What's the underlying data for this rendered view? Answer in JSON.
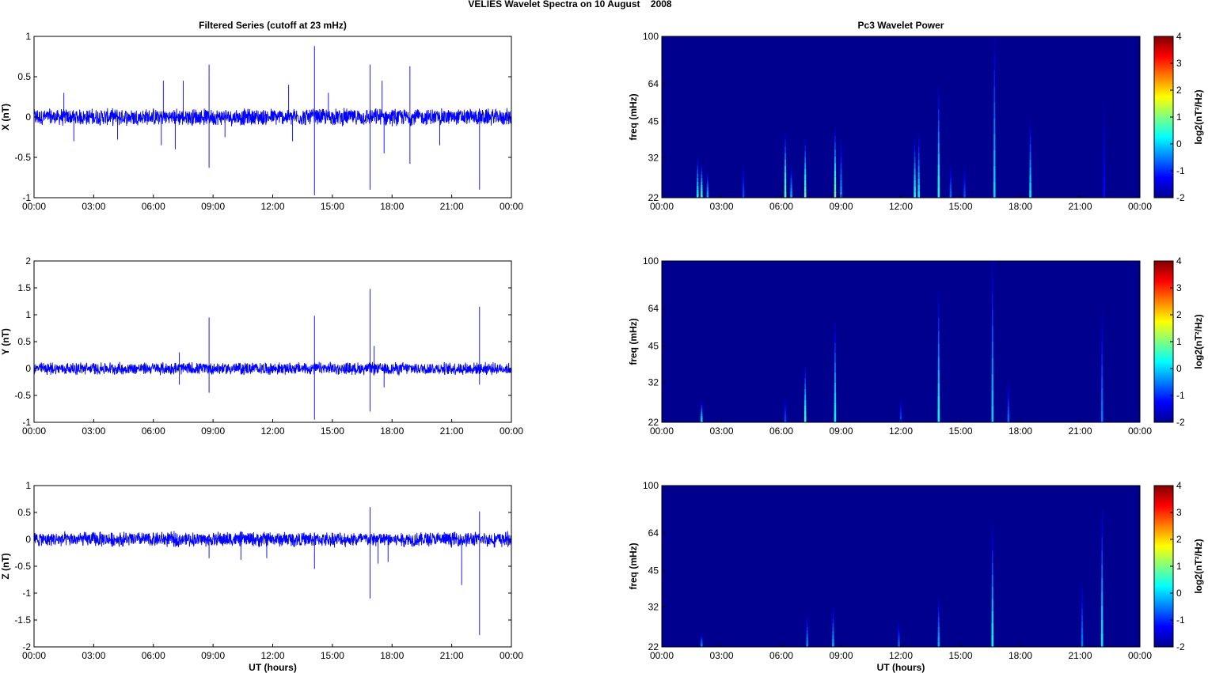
{
  "figure_title": "VELIES Wavelet Spectra on 10 August    2008",
  "colors": {
    "series_line": "#0000ff",
    "spectrogram_background": "#00008f",
    "axes": "#000000"
  },
  "chart_data": [
    {
      "type": "line",
      "title": "Filtered Series (cutoff at 23 mHz)",
      "xlabel": "",
      "ylabel": "X (nT)",
      "xticks": [
        "00:00",
        "03:00",
        "06:00",
        "09:00",
        "12:00",
        "15:00",
        "18:00",
        "21:00",
        "00:00"
      ],
      "xlim_hours": [
        0,
        24
      ],
      "ylim": [
        -1,
        1
      ],
      "yticks": [
        -1,
        -0.5,
        0,
        0.5,
        1
      ],
      "ytick_labels": [
        "-1",
        "-0.5",
        "0",
        "0.5",
        "1"
      ],
      "noise_amplitude": 0.09,
      "spikes": [
        {
          "t": 1.5,
          "v": 0.3
        },
        {
          "t": 2.0,
          "v": -0.3
        },
        {
          "t": 4.2,
          "v": -0.28
        },
        {
          "t": 6.5,
          "v": 0.45
        },
        {
          "t": 6.4,
          "v": -0.35
        },
        {
          "t": 7.1,
          "v": -0.4
        },
        {
          "t": 7.5,
          "v": 0.45
        },
        {
          "t": 8.8,
          "v": 0.65
        },
        {
          "t": 8.8,
          "v": -0.63
        },
        {
          "t": 9.6,
          "v": -0.25
        },
        {
          "t": 12.8,
          "v": 0.4
        },
        {
          "t": 13.0,
          "v": -0.3
        },
        {
          "t": 14.1,
          "v": 0.88
        },
        {
          "t": 14.1,
          "v": -0.97
        },
        {
          "t": 14.8,
          "v": 0.3
        },
        {
          "t": 16.9,
          "v": 0.65
        },
        {
          "t": 16.9,
          "v": -0.9
        },
        {
          "t": 17.5,
          "v": 0.45
        },
        {
          "t": 17.6,
          "v": -0.45
        },
        {
          "t": 18.9,
          "v": 0.63
        },
        {
          "t": 18.9,
          "v": -0.58
        },
        {
          "t": 20.4,
          "v": -0.35
        },
        {
          "t": 22.4,
          "v": -0.9
        }
      ]
    },
    {
      "type": "line",
      "title": "",
      "xlabel": "",
      "ylabel": "Y (nT)",
      "xticks": [
        "00:00",
        "03:00",
        "06:00",
        "09:00",
        "12:00",
        "15:00",
        "18:00",
        "21:00",
        "00:00"
      ],
      "xlim_hours": [
        0,
        24
      ],
      "ylim": [
        -1,
        2
      ],
      "yticks": [
        -1,
        -0.5,
        0,
        0.5,
        1,
        1.5,
        2
      ],
      "ytick_labels": [
        "-1",
        "-0.5",
        "0",
        "0.5",
        "1",
        "1.5",
        "2"
      ],
      "noise_amplitude": 0.1,
      "spikes": [
        {
          "t": 7.3,
          "v": 0.3
        },
        {
          "t": 7.3,
          "v": -0.3
        },
        {
          "t": 8.8,
          "v": 0.95
        },
        {
          "t": 8.8,
          "v": -0.45
        },
        {
          "t": 14.1,
          "v": 0.98
        },
        {
          "t": 14.1,
          "v": -0.95
        },
        {
          "t": 16.9,
          "v": 1.48
        },
        {
          "t": 16.9,
          "v": -0.8
        },
        {
          "t": 17.1,
          "v": 0.42
        },
        {
          "t": 17.6,
          "v": -0.35
        },
        {
          "t": 22.4,
          "v": 1.15
        },
        {
          "t": 22.4,
          "v": -0.3
        }
      ]
    },
    {
      "type": "line",
      "title": "",
      "xlabel": "UT (hours)",
      "ylabel": "Z (nT)",
      "xticks": [
        "00:00",
        "03:00",
        "06:00",
        "09:00",
        "12:00",
        "15:00",
        "18:00",
        "21:00",
        "00:00"
      ],
      "xlim_hours": [
        0,
        24
      ],
      "ylim": [
        -2,
        1
      ],
      "yticks": [
        -2,
        -1.5,
        -1,
        -0.5,
        0,
        0.5,
        1
      ],
      "ytick_labels": [
        "-2",
        "-1.5",
        "-1",
        "-0.5",
        "0",
        "0.5",
        "1"
      ],
      "noise_amplitude": 0.12,
      "spikes": [
        {
          "t": 8.8,
          "v": -0.35
        },
        {
          "t": 10.4,
          "v": -0.38
        },
        {
          "t": 11.7,
          "v": -0.35
        },
        {
          "t": 14.1,
          "v": -0.55
        },
        {
          "t": 16.9,
          "v": 0.6
        },
        {
          "t": 16.9,
          "v": -1.1
        },
        {
          "t": 17.3,
          "v": -0.45
        },
        {
          "t": 17.8,
          "v": -0.42
        },
        {
          "t": 21.5,
          "v": -0.85
        },
        {
          "t": 22.4,
          "v": 0.52
        },
        {
          "t": 22.4,
          "v": -1.78
        }
      ]
    },
    {
      "type": "heatmap",
      "title": "Pc3 Wavelet Power",
      "xlabel": "",
      "ylabel": "freq (mHz)",
      "xticks": [
        "00:00",
        "03:00",
        "06:00",
        "09:00",
        "12:00",
        "15:00",
        "18:00",
        "21:00",
        "00:00"
      ],
      "xlim_hours": [
        0,
        24
      ],
      "ylim_mhz": [
        22,
        100
      ],
      "yticks": [
        22,
        32,
        45,
        64,
        100
      ],
      "ytick_labels": [
        "22",
        "32",
        "45",
        "64",
        "100"
      ],
      "colorbar_label": "log2(nT²/Hz)",
      "colorbar_ticks": [
        -2,
        -1,
        0,
        1,
        2,
        3,
        4
      ],
      "colorbar_tick_labels": [
        "-2",
        "-1",
        "0",
        "1",
        "2",
        "3",
        "4"
      ],
      "clim": [
        -2,
        4
      ],
      "events": [
        {
          "t": 1.8,
          "fmax": 32,
          "level": 0.3
        },
        {
          "t": 2.0,
          "fmax": 30,
          "level": 0.6
        },
        {
          "t": 2.3,
          "fmax": 28,
          "level": -0.2
        },
        {
          "t": 4.1,
          "fmax": 30,
          "level": -0.8
        },
        {
          "t": 6.2,
          "fmax": 40,
          "level": 0.8
        },
        {
          "t": 6.5,
          "fmax": 30,
          "level": -0.2
        },
        {
          "t": 7.2,
          "fmax": 38,
          "level": 0.8
        },
        {
          "t": 8.7,
          "fmax": 42,
          "level": 0.9
        },
        {
          "t": 9.0,
          "fmax": 38,
          "level": -0.3
        },
        {
          "t": 12.7,
          "fmax": 38,
          "level": 0.4
        },
        {
          "t": 12.9,
          "fmax": 40,
          "level": 0.2
        },
        {
          "t": 13.9,
          "fmax": 62,
          "level": 0.4
        },
        {
          "t": 14.5,
          "fmax": 30,
          "level": -0.6
        },
        {
          "t": 15.2,
          "fmax": 30,
          "level": -0.8
        },
        {
          "t": 16.7,
          "fmax": 98,
          "level": 0.1
        },
        {
          "t": 18.5,
          "fmax": 45,
          "level": 0.2
        },
        {
          "t": 22.2,
          "fmax": 58,
          "level": -1.2
        }
      ]
    },
    {
      "type": "heatmap",
      "title": "",
      "xlabel": "",
      "ylabel": "freq (mHz)",
      "xticks": [
        "00:00",
        "03:00",
        "06:00",
        "09:00",
        "12:00",
        "15:00",
        "18:00",
        "21:00",
        "00:00"
      ],
      "xlim_hours": [
        0,
        24
      ],
      "ylim_mhz": [
        22,
        100
      ],
      "yticks": [
        22,
        32,
        45,
        64,
        100
      ],
      "ytick_labels": [
        "22",
        "32",
        "45",
        "64",
        "100"
      ],
      "colorbar_label": "log2(nT²/Hz)",
      "colorbar_ticks": [
        -2,
        -1,
        0,
        1,
        2,
        3,
        4
      ],
      "colorbar_tick_labels": [
        "-2",
        "-1",
        "0",
        "1",
        "2",
        "3",
        "4"
      ],
      "clim": [
        -2,
        4
      ],
      "events": [
        {
          "t": 2.0,
          "fmax": 27,
          "level": 0.2
        },
        {
          "t": 6.2,
          "fmax": 28,
          "level": -0.8
        },
        {
          "t": 7.2,
          "fmax": 37,
          "level": 0.6
        },
        {
          "t": 8.7,
          "fmax": 56,
          "level": 0.3
        },
        {
          "t": 12.0,
          "fmax": 28,
          "level": -0.8
        },
        {
          "t": 13.9,
          "fmax": 75,
          "level": 0.3
        },
        {
          "t": 16.6,
          "fmax": 100,
          "level": 0.0
        },
        {
          "t": 17.4,
          "fmax": 32,
          "level": -0.6
        },
        {
          "t": 22.1,
          "fmax": 64,
          "level": -0.5
        }
      ]
    },
    {
      "type": "heatmap",
      "title": "",
      "xlabel": "UT (hours)",
      "ylabel": "freq (mHz)",
      "xticks": [
        "00:00",
        "03:00",
        "06:00",
        "09:00",
        "12:00",
        "15:00",
        "18:00",
        "21:00",
        "00:00"
      ],
      "xlim_hours": [
        0,
        24
      ],
      "ylim_mhz": [
        22,
        100
      ],
      "yticks": [
        22,
        32,
        45,
        64,
        100
      ],
      "ytick_labels": [
        "22",
        "32",
        "45",
        "64",
        "100"
      ],
      "colorbar_label": "log2(nT²/Hz)",
      "colorbar_ticks": [
        -2,
        -1,
        0,
        1,
        2,
        3,
        4
      ],
      "colorbar_tick_labels": [
        "-2",
        "-1",
        "0",
        "1",
        "2",
        "3",
        "4"
      ],
      "clim": [
        -2,
        4
      ],
      "events": [
        {
          "t": 2.0,
          "fmax": 25,
          "level": -0.3
        },
        {
          "t": 7.3,
          "fmax": 30,
          "level": -0.4
        },
        {
          "t": 8.6,
          "fmax": 32,
          "level": -0.2
        },
        {
          "t": 11.9,
          "fmax": 28,
          "level": -0.6
        },
        {
          "t": 13.9,
          "fmax": 35,
          "level": -0.2
        },
        {
          "t": 16.6,
          "fmax": 68,
          "level": 0.3
        },
        {
          "t": 21.1,
          "fmax": 40,
          "level": -0.5
        },
        {
          "t": 22.1,
          "fmax": 80,
          "level": 0.2
        }
      ]
    }
  ]
}
